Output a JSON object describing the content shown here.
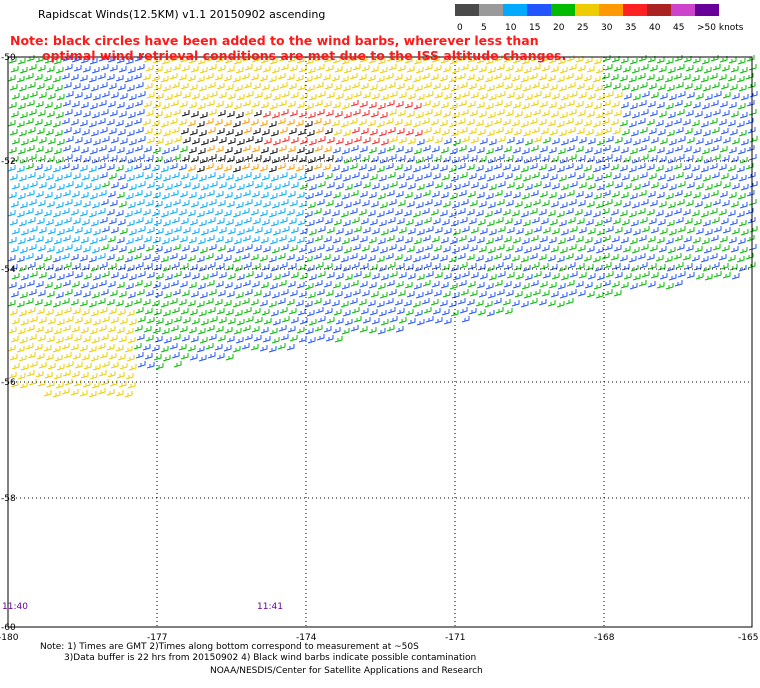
{
  "title": "Rapidscat Winds(12.5KM) v1.1 20150902 ascending",
  "note": {
    "line1": "Note: black circles have been added to the wind barbs, wherever less than",
    "line2": "optimal wind retrieval conditions are met due to the ISS altitude changes."
  },
  "legend": {
    "labels": [
      "0",
      "5",
      "10",
      "15",
      "20",
      "25",
      "30",
      "35",
      "40",
      "45",
      ">50 knots"
    ],
    "colors": [
      "#4a4a4a",
      "#9a9a9a",
      "#00aaff",
      "#2255ff",
      "#00bb00",
      "#eecc00",
      "#ff9900",
      "#ff2222",
      "#aa2222",
      "#cc44cc",
      "#660099"
    ]
  },
  "map": {
    "lat_labels": [
      "-50",
      "-52",
      "-54",
      "-56",
      "-58",
      "-60"
    ],
    "lon_labels": [
      "-180",
      "-177",
      "-174",
      "-171",
      "-168",
      "-165"
    ],
    "time_labels": [
      "11:40",
      "11:41"
    ]
  },
  "footer": {
    "line1": "Note: 1) Times are GMT 2)Times along bottom correspond to measurement at ~50S",
    "line2": "3)Data buffer is 22 hrs from 20150902 4) Black wind barbs indicate possible contamination",
    "line3": "NOAA/NESDIS/Center for Satellite Applications and Research"
  }
}
